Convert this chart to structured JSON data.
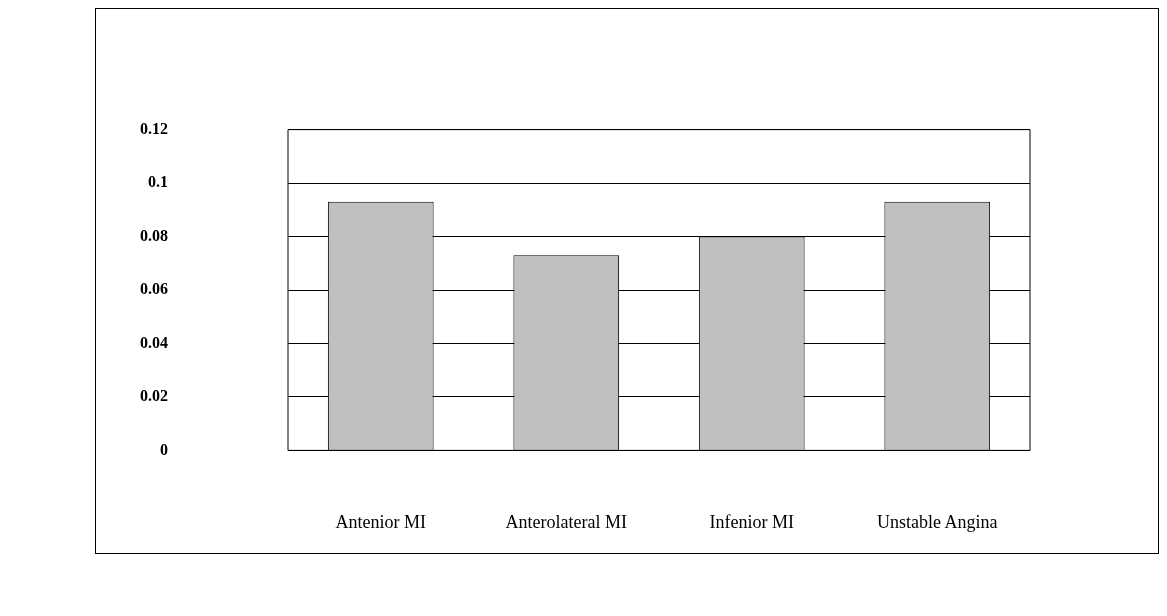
{
  "chart_data": {
    "type": "bar",
    "categories": [
      "Antenior MI",
      "Anterolateral MI",
      "Infenior MI",
      "Unstable Angina"
    ],
    "values": [
      0.093,
      0.073,
      0.08,
      0.093
    ],
    "color": "#c0c0c0",
    "ylim": [
      0,
      0.12
    ],
    "yticks": [
      0,
      0.02,
      0.04,
      0.06,
      0.08,
      0.1,
      0.12
    ],
    "grid": "y",
    "legend": false
  }
}
